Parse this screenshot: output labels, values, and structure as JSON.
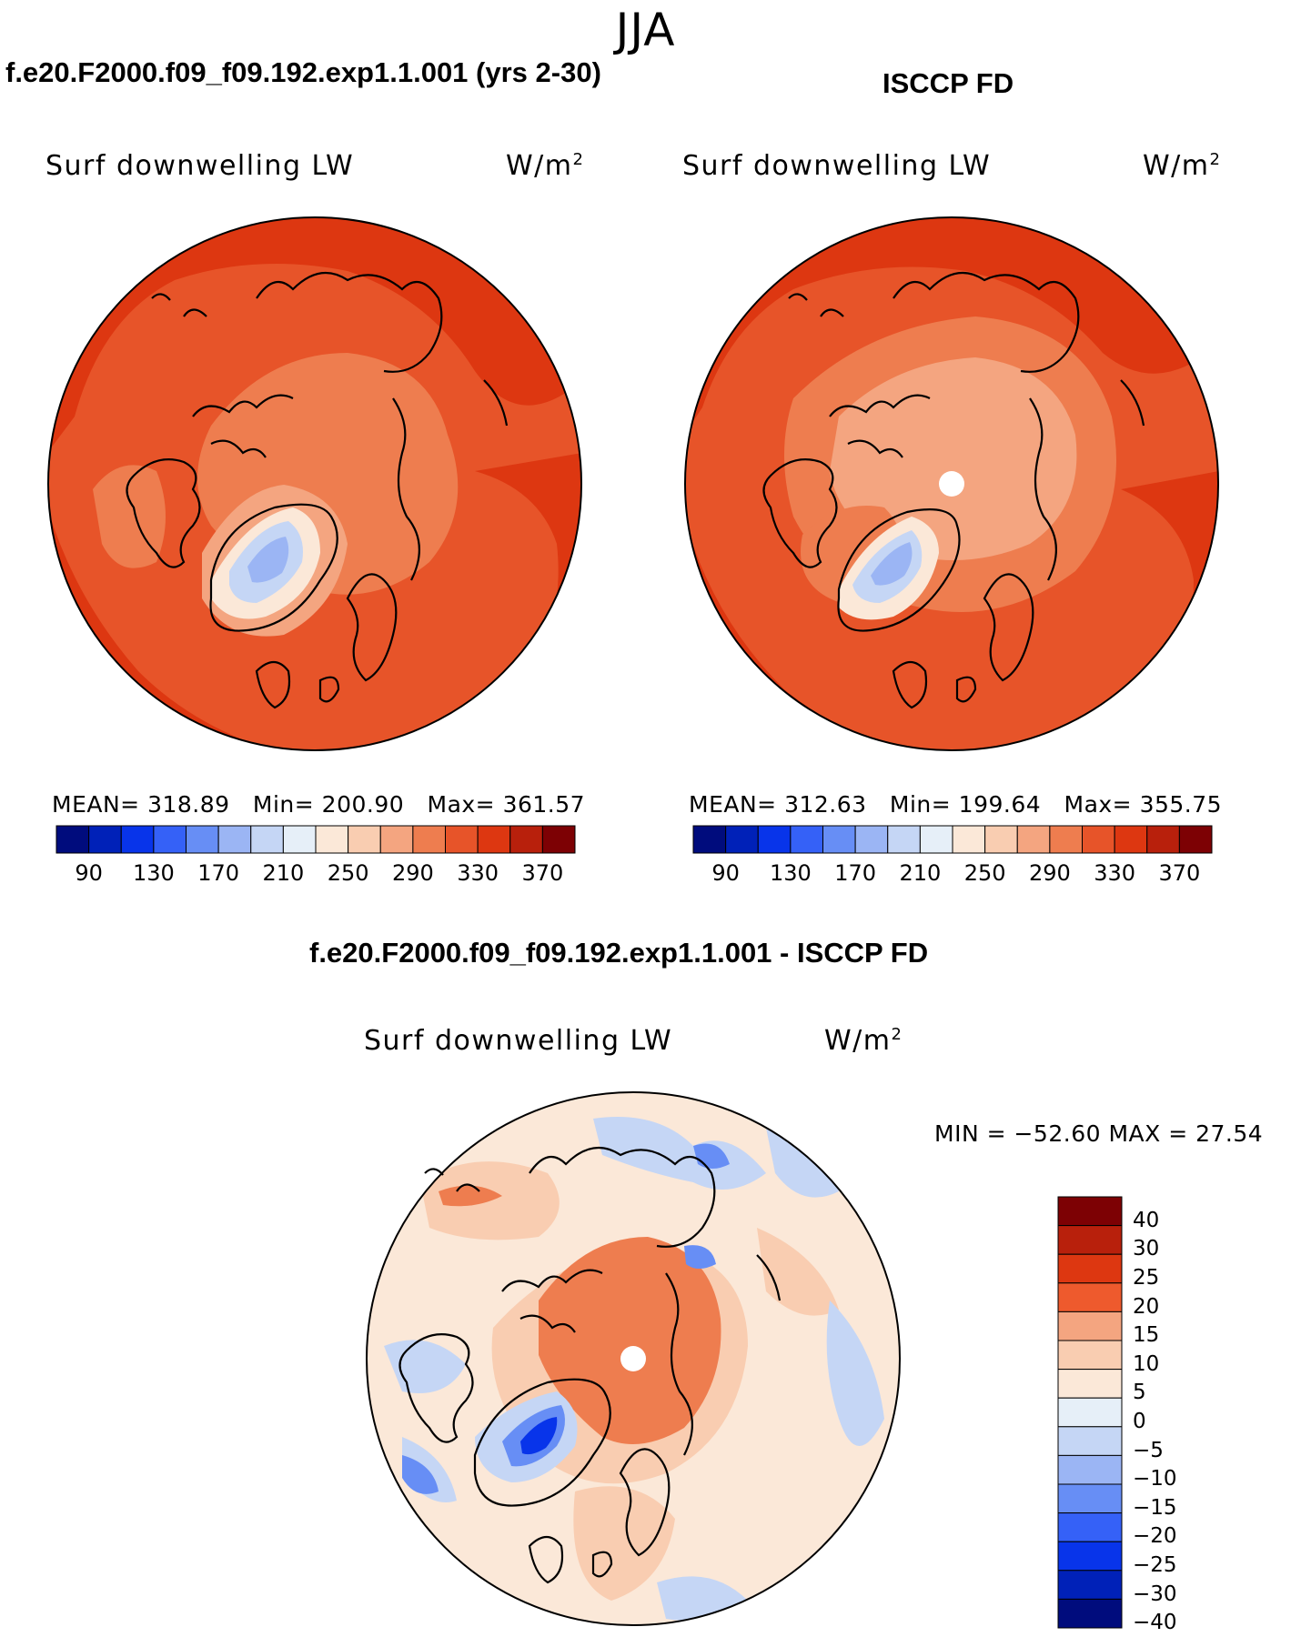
{
  "figure": {
    "season": "JJA",
    "panels": [
      {
        "title": "f.e20.F2000.f09_f09.192.exp1.1.001 (yrs 2-30)",
        "variable": "Surf downwelling LW",
        "units_base": "W/m",
        "units_exp": "2",
        "stats": {
          "mean_label": "MEAN=",
          "mean": "318.89",
          "min_label": "Min=",
          "min": "200.90",
          "max_label": "Max=",
          "max": "361.57"
        },
        "pole_missing": false
      },
      {
        "title": "ISCCP FD",
        "variable": "Surf downwelling LW",
        "units_base": "W/m",
        "units_exp": "2",
        "stats": {
          "mean_label": "MEAN=",
          "mean": "312.63",
          "min_label": "Min=",
          "min": "199.64",
          "max_label": "Max=",
          "max": "355.75"
        },
        "pole_missing": true
      }
    ],
    "diff_panel": {
      "title": "f.e20.F2000.f09_f09.192.exp1.1.001 - ISCCP FD",
      "variable": "Surf downwelling LW",
      "units_base": "W/m",
      "units_exp": "2",
      "minmax": "MIN = −52.60 MAX =  27.54",
      "pole_missing": true
    },
    "colorbar_abs": {
      "colors": [
        "#000c7d",
        "#0021b8",
        "#0834ea",
        "#3561f7",
        "#678ef5",
        "#9bb5f4",
        "#c5d6f5",
        "#e6eff8",
        "#fbe8d8",
        "#f9cdb1",
        "#f4a580",
        "#ee7d4f",
        "#e75429",
        "#dd3711",
        "#b8200c",
        "#7d0104"
      ],
      "labels": [
        "90",
        "130",
        "170",
        "210",
        "250",
        "290",
        "330",
        "370"
      ]
    },
    "colorbar_diff": {
      "colors": [
        "#7d0104",
        "#b8200c",
        "#dd3711",
        "#ee5a2d",
        "#f4a580",
        "#f9cdb1",
        "#fbe8d8",
        "#e6eff8",
        "#c5d6f5",
        "#9bb5f4",
        "#678ef5",
        "#3561f7",
        "#0834ea",
        "#0021b8",
        "#000c7d"
      ],
      "labels": [
        "40",
        "30",
        "25",
        "20",
        "15",
        "10",
        "5",
        "0",
        "−5",
        "−10",
        "−15",
        "−20",
        "−25",
        "−30",
        "−40"
      ]
    },
    "fill_colors": {
      "ocean_deep": "#dd3711",
      "ocean_mid": "#e75429",
      "arctic": "#ee7d4f",
      "arctic_light": "#f4a580",
      "greenland_edge": "#fbe8d8",
      "greenland_core": "#c5d6f5",
      "greenland_center": "#9bb5f4",
      "diff_base": "#fbe8d8",
      "diff_warm": "#f9cdb1",
      "diff_hot": "#ee7d4f",
      "diff_cool": "#c5d6f5",
      "diff_cold": "#678ef5",
      "diff_coldest": "#0834ea"
    }
  }
}
